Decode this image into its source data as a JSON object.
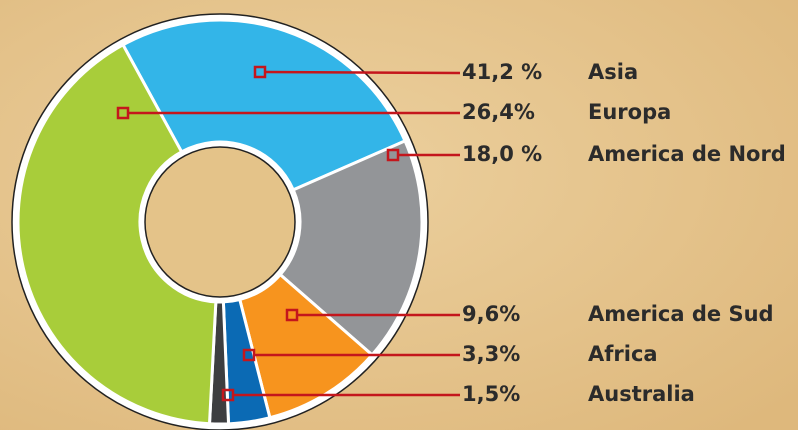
{
  "chart_data": {
    "type": "pie",
    "categories": [
      "Asia",
      "Europa",
      "America de Nord",
      "America de Sud",
      "Africa",
      "Australia"
    ],
    "values": [
      41.2,
      26.4,
      18.0,
      9.6,
      3.3,
      1.5
    ],
    "value_labels": [
      "41,2 %",
      "26,4%",
      "18,0 %",
      "9,6%",
      "3,3%",
      "1,5%"
    ],
    "colors": [
      "#a8cd3a",
      "#33b5e8",
      "#939598",
      "#f7941e",
      "#0b6ab4",
      "#3d3e40"
    ]
  }
}
